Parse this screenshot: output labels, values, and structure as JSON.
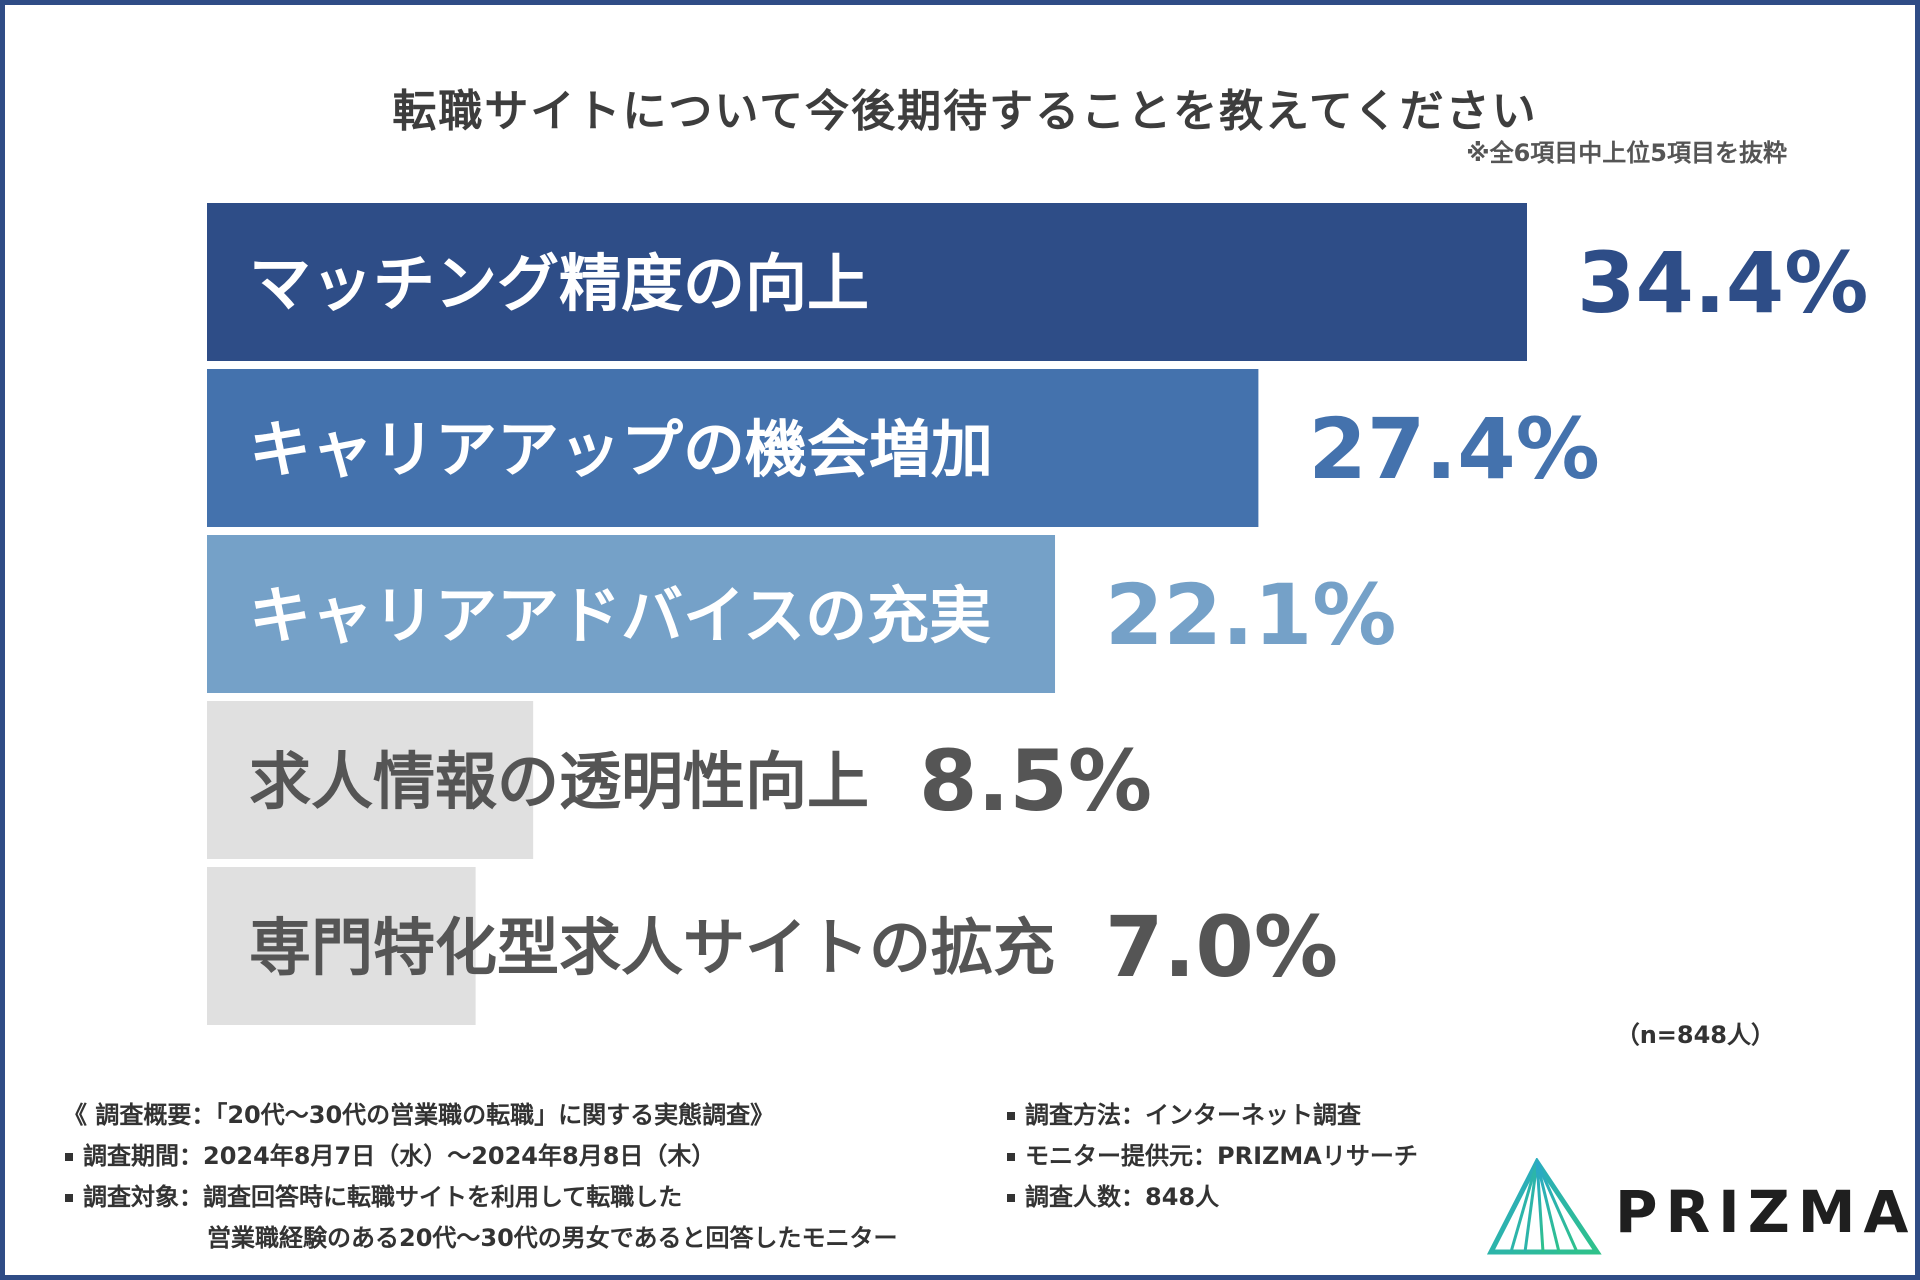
{
  "title": "転職サイトについて今後期待することを教えてください",
  "note": "※全6項目中上位5項目を抜粋",
  "sample": "（n=848人）",
  "chart_data": {
    "type": "bar",
    "orientation": "horizontal",
    "categories": [
      "マッチング精度の向上",
      "キャリアアップの機会増加",
      "キャリアアドバイスの充実",
      "求人情報の透明性向上",
      "専門特化型求人サイトの拡充"
    ],
    "values": [
      34.4,
      27.4,
      22.1,
      8.5,
      7.0
    ],
    "value_labels": [
      "34.4%",
      "27.4%",
      "22.1%",
      "8.5%",
      "7.0%"
    ],
    "colors": [
      "#2e4d87",
      "#4472ad",
      "#75a1c8",
      "#e0e0e0",
      "#e0e0e0"
    ],
    "label_colors": [
      "#ffffff",
      "#ffffff",
      "#ffffff",
      "#555555",
      "#555555"
    ],
    "value_colors": [
      "#2e4d87",
      "#4472ad",
      "#75a1c8",
      "#555555",
      "#555555"
    ],
    "unit": "%",
    "xlim": [
      0,
      34.4
    ]
  },
  "survey": {
    "left": [
      "《 調査概要：「20代〜30代の営業職の転職」に関する実態調査》",
      "調査期間：2024年8月7日（水）〜2024年8月8日（木）",
      "調査対象：調査回答時に転職サイトを利用して転職した",
      "営業職経験のある20代〜30代の男女であると回答したモニター"
    ],
    "right": [
      "調査方法：インターネット調査",
      "モニター提供元：PRIZMAリサーチ",
      "調査人数：848人"
    ]
  },
  "logo": {
    "text": "PRIZMA",
    "color": "#1f1f1f",
    "mark_colors": [
      "#2aa7c9",
      "#2fc28a"
    ]
  }
}
